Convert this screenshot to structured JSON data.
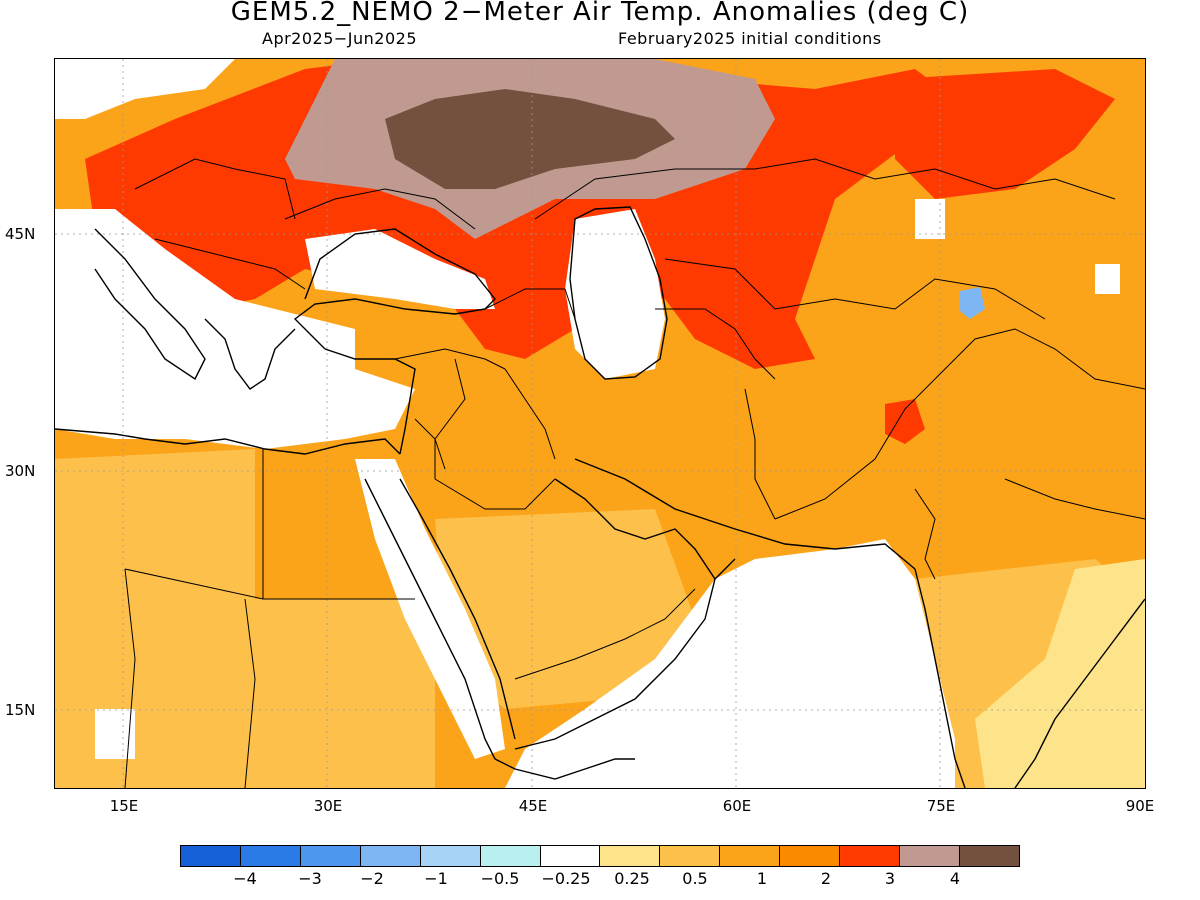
{
  "header": {
    "title": "GEM5.2_NEMO 2−Meter Air Temp. Anomalies (deg C)",
    "period": "Apr2025−Jun2025",
    "init": "February2025 initial conditions"
  },
  "map": {
    "lat_labels": [
      "45N",
      "30N",
      "15N"
    ],
    "lon_labels": [
      "15E",
      "30E",
      "45E",
      "60E",
      "75E",
      "90E"
    ],
    "lon_range": [
      10,
      90
    ],
    "lat_range": [
      10,
      55
    ]
  },
  "colors": {
    "minus4": "#1660d8",
    "minus3": "#2a7ae8",
    "minus2": "#4d98ee",
    "minus1": "#7db6f2",
    "minus05": "#a7d4f6",
    "minus025": "#b8f0f0",
    "neutral": "#ffffff",
    "plus025": "#fde48a",
    "plus05": "#fdc04a",
    "plus1": "#fba319",
    "plus2": "#fb8a00",
    "plus3": "#ff3a00",
    "plus4": "#c09a90",
    "plus5": "#74503f"
  },
  "colorbar": {
    "labels": [
      "−4",
      "−3",
      "−2",
      "−1",
      "−0.5",
      "−0.25",
      "0.25",
      "0.5",
      "1",
      "2",
      "3",
      "4"
    ]
  }
}
